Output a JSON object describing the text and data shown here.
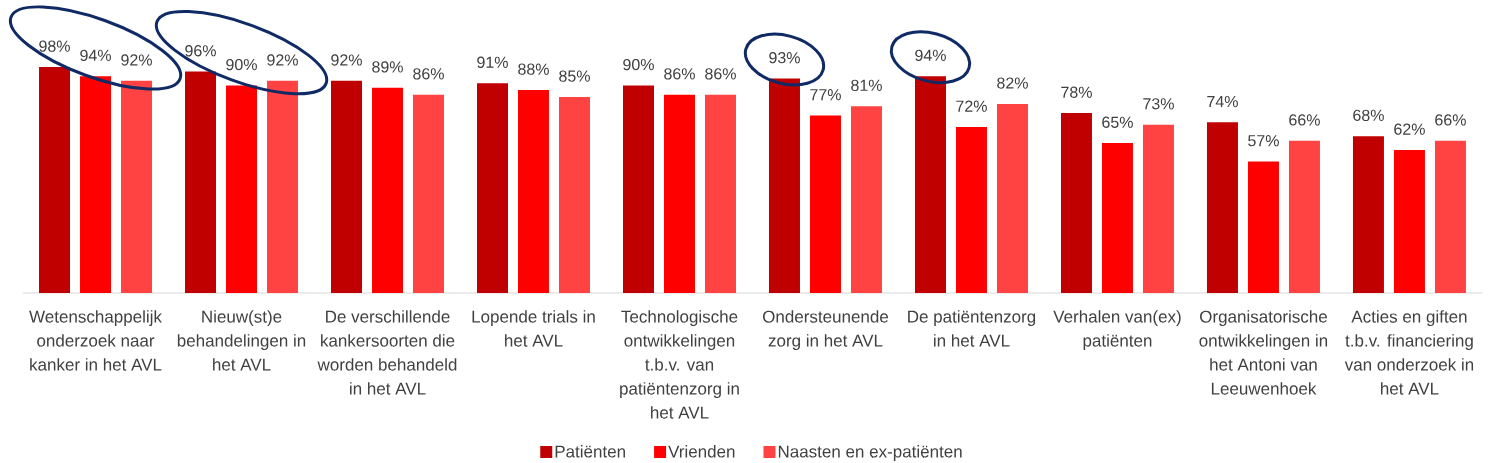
{
  "chart_data": {
    "type": "bar",
    "categories": [
      "Wetenschappelijk onderzoek naar kanker in het AVL",
      "Nieuw(st)e behandelingen in het AVL",
      "De verschillende kankersoorten die worden behandeld in het AVL",
      "Lopende trials in het AVL",
      "Technologische ontwikkelingen t.b.v. van patiëntenzorg in het AVL",
      "Ondersteunende zorg in het AVL",
      "De patiëntenzorg in het AVL",
      "Verhalen van(ex) patiënten",
      "Organisatorische ontwikkelingen in het Antoni van Leeuwenhoek",
      "Acties en giften t.b.v. financiering van onderzoek in het AVL"
    ],
    "series": [
      {
        "name": "Patiënten",
        "color": "#c00000",
        "values": [
          98,
          96,
          92,
          91,
          90,
          93,
          94,
          78,
          74,
          68
        ],
        "value_labels": [
          "98%",
          "96%",
          "92%",
          "91%",
          "90%",
          "93%",
          "94%",
          "78%",
          "74%",
          "68%"
        ]
      },
      {
        "name": "Vrienden",
        "color": "#ff0000",
        "values": [
          94,
          90,
          89,
          88,
          86,
          77,
          72,
          65,
          57,
          62
        ],
        "value_labels": [
          "94%",
          "90%",
          "89%",
          "88%",
          "86%",
          "77%",
          "72%",
          "65%",
          "57%",
          "62%"
        ]
      },
      {
        "name": "Naasten en ex-patiënten",
        "color": "#ff4343",
        "values": [
          92,
          92,
          86,
          85,
          86,
          81,
          82,
          73,
          66,
          66
        ],
        "value_labels": [
          "92%",
          "92%",
          "86%",
          "85%",
          "86%",
          "81%",
          "82%",
          "73%",
          "66%",
          "66%"
        ]
      }
    ],
    "legend": "bottom"
  }
}
